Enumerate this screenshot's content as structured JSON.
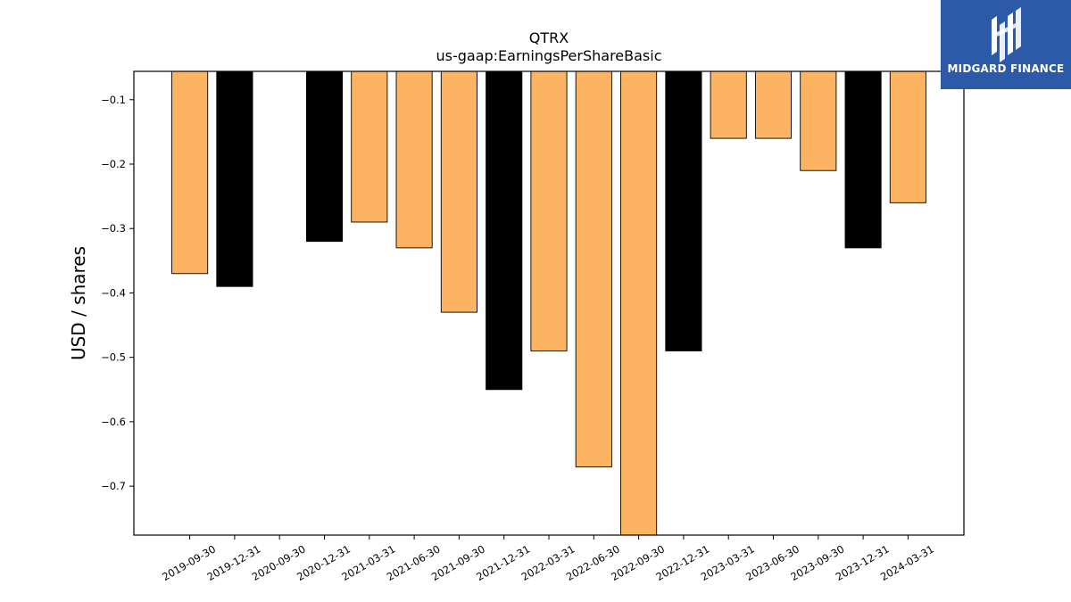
{
  "chart_data": {
    "type": "bar",
    "title": "QTRX",
    "subtitle": "us-gaap:EarningsPerShareBasic",
    "ylabel": "USD / shares",
    "xlabel": "",
    "ylim": [
      -0.776,
      -0.056
    ],
    "yticks": [
      -0.1,
      -0.2,
      -0.3,
      -0.4,
      -0.5,
      -0.6,
      -0.7
    ],
    "ytick_labels": [
      "−0.1",
      "−0.2",
      "−0.3",
      "−0.4",
      "−0.5",
      "−0.6",
      "−0.7"
    ],
    "grid": false,
    "categories": [
      "2019-09-30",
      "2019-12-31",
      "2020-09-30",
      "2020-12-31",
      "2021-03-31",
      "2021-06-30",
      "2021-09-30",
      "2021-12-31",
      "2022-03-31",
      "2022-06-30",
      "2022-09-30",
      "2022-12-31",
      "2023-03-31",
      "2023-06-30",
      "2023-09-30",
      "2023-12-31",
      "2024-03-31"
    ],
    "values": [
      -0.37,
      -0.39,
      null,
      -0.32,
      -0.29,
      -0.33,
      -0.43,
      -0.55,
      -0.49,
      -0.67,
      -0.78,
      -0.49,
      -0.16,
      -0.16,
      -0.21,
      -0.33,
      -0.26
    ],
    "colors": [
      "#fdb462",
      "#000000",
      "#fdb462",
      "#000000",
      "#fdb462",
      "#fdb462",
      "#fdb462",
      "#000000",
      "#fdb462",
      "#fdb462",
      "#fdb462",
      "#000000",
      "#fdb462",
      "#fdb462",
      "#fdb462",
      "#000000",
      "#fdb462"
    ]
  },
  "logo": {
    "text": "MIDGARD FINANCE",
    "background": "#2d5aa8"
  }
}
